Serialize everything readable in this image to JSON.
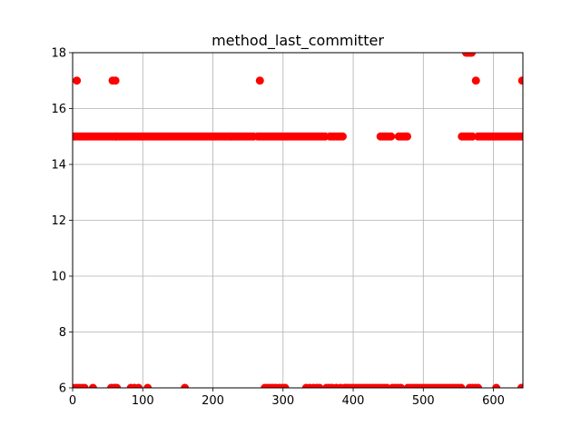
{
  "chart_data": {
    "type": "scatter",
    "title": "method_last_committer",
    "xlabel": "",
    "ylabel": "",
    "xlim": [
      0,
      642
    ],
    "ylim": [
      6,
      18
    ],
    "xticks": [
      0,
      100,
      200,
      300,
      400,
      500,
      600
    ],
    "yticks": [
      6,
      8,
      10,
      12,
      14,
      16,
      18
    ],
    "grid": true,
    "marker_color": "#ff0000",
    "series": [
      {
        "points": [
          [
            6,
            17
          ],
          [
            57,
            17
          ],
          [
            61,
            17
          ],
          [
            267,
            17
          ],
          [
            575,
            17
          ],
          [
            641,
            17
          ],
          [
            561,
            18
          ],
          [
            563,
            18
          ],
          [
            565,
            18
          ],
          [
            567,
            18
          ],
          [
            569,
            18
          ],
          [
            0,
            6
          ],
          [
            5,
            6
          ],
          [
            9,
            6
          ],
          [
            13,
            6
          ],
          [
            17,
            6
          ],
          [
            29,
            6
          ],
          [
            55,
            6
          ],
          [
            59,
            6
          ],
          [
            63,
            6
          ],
          [
            83,
            6
          ],
          [
            88,
            6
          ],
          [
            94,
            6
          ],
          [
            107,
            6
          ],
          [
            160,
            6
          ],
          [
            274,
            6
          ],
          [
            278,
            6
          ],
          [
            282,
            6
          ],
          [
            286,
            6
          ],
          [
            290,
            6
          ],
          [
            295,
            6
          ],
          [
            299,
            6
          ],
          [
            303,
            6
          ],
          [
            333,
            6
          ],
          [
            338,
            6
          ],
          [
            343,
            6
          ],
          [
            348,
            6
          ],
          [
            352,
            6
          ],
          [
            362,
            6
          ],
          [
            366,
            6
          ],
          [
            370,
            6
          ],
          [
            376,
            6
          ],
          [
            382,
            6
          ],
          [
            388,
            6
          ],
          [
            392,
            6
          ],
          [
            396,
            6
          ],
          [
            400,
            6
          ],
          [
            404,
            6
          ],
          [
            408,
            6
          ],
          [
            412,
            6
          ],
          [
            416,
            6
          ],
          [
            420,
            6
          ],
          [
            424,
            6
          ],
          [
            428,
            6
          ],
          [
            432,
            6
          ],
          [
            436,
            6
          ],
          [
            440,
            6
          ],
          [
            444,
            6
          ],
          [
            448,
            6
          ],
          [
            456,
            6
          ],
          [
            460,
            6
          ],
          [
            464,
            6
          ],
          [
            468,
            6
          ],
          [
            478,
            6
          ],
          [
            482,
            6
          ],
          [
            486,
            6
          ],
          [
            490,
            6
          ],
          [
            494,
            6
          ],
          [
            498,
            6
          ],
          [
            502,
            6
          ],
          [
            506,
            6
          ],
          [
            510,
            6
          ],
          [
            514,
            6
          ],
          [
            518,
            6
          ],
          [
            522,
            6
          ],
          [
            526,
            6
          ],
          [
            530,
            6
          ],
          [
            534,
            6
          ],
          [
            538,
            6
          ],
          [
            542,
            6
          ],
          [
            546,
            6
          ],
          [
            550,
            6
          ],
          [
            554,
            6
          ],
          [
            566,
            6
          ],
          [
            570,
            6
          ],
          [
            574,
            6
          ],
          [
            578,
            6
          ],
          [
            604,
            6
          ],
          [
            640,
            6
          ]
        ]
      }
    ],
    "dense_segments_y15": [
      [
        0,
        260
      ],
      [
        264,
        360
      ],
      [
        367,
        385
      ],
      [
        439,
        455
      ],
      [
        465,
        478
      ],
      [
        555,
        572
      ],
      [
        578,
        642
      ]
    ],
    "dense_step": 3
  }
}
